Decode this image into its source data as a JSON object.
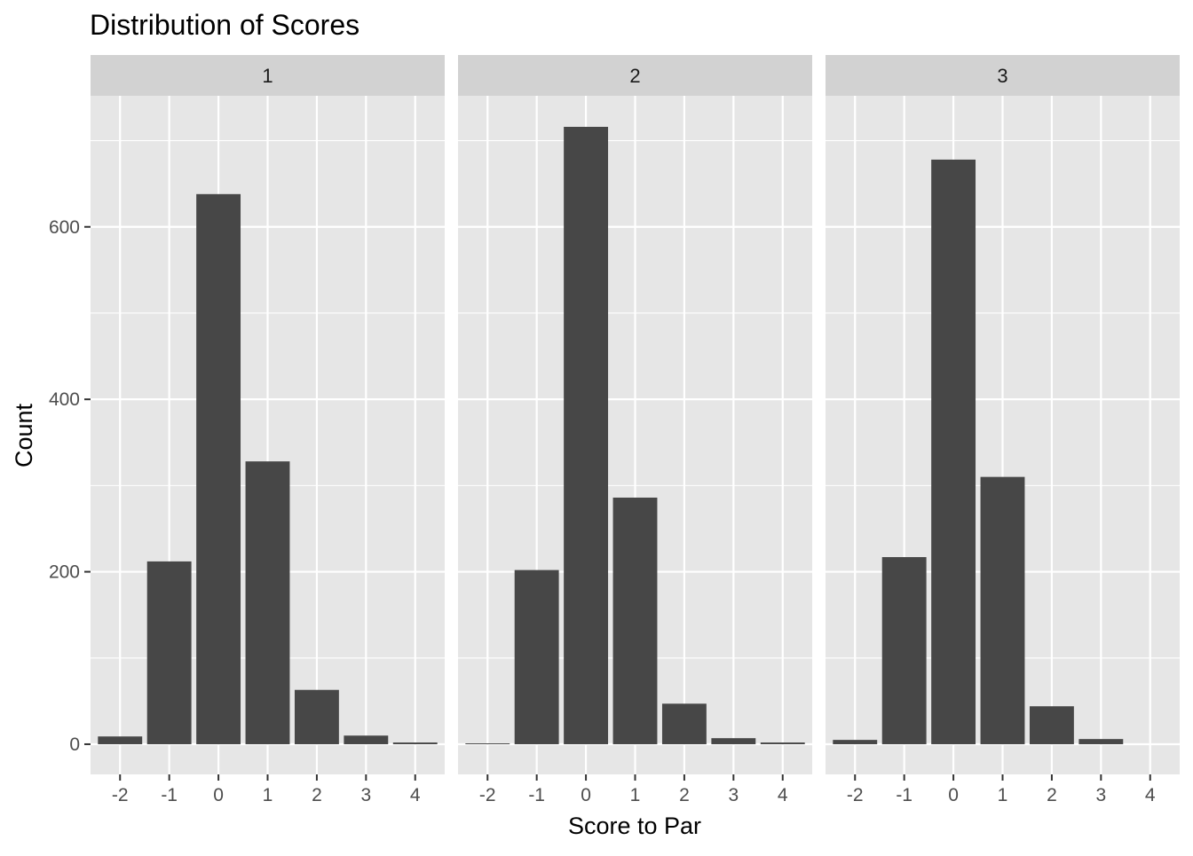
{
  "chart_data": {
    "type": "bar",
    "title": "Distribution of Scores",
    "xlabel": "Score to Par",
    "ylabel": "Count",
    "categories": [
      "-2",
      "-1",
      "0",
      "1",
      "2",
      "3",
      "4"
    ],
    "x": [
      -2,
      -1,
      0,
      1,
      2,
      3,
      4
    ],
    "ylim": [
      -35,
      752
    ],
    "xlim": [
      -2.6,
      4.6
    ],
    "y_ticks": [
      0,
      200,
      400,
      600
    ],
    "y_minor_ticks": [
      100,
      300,
      500,
      700
    ],
    "grid": true,
    "legend": "none",
    "panels": [
      {
        "facet": "1",
        "values": [
          9,
          212,
          638,
          328,
          63,
          10,
          2
        ]
      },
      {
        "facet": "2",
        "values": [
          1,
          202,
          716,
          286,
          47,
          7,
          2
        ]
      },
      {
        "facet": "3",
        "values": [
          5,
          217,
          678,
          310,
          44,
          6,
          0
        ]
      }
    ],
    "colors": {
      "bar": "#474747",
      "panel_bg": "#e6e6e6",
      "strip_bg": "#d2d2d2",
      "grid": "#ffffff",
      "text": "#4d4d4d",
      "title": "#000000"
    }
  }
}
